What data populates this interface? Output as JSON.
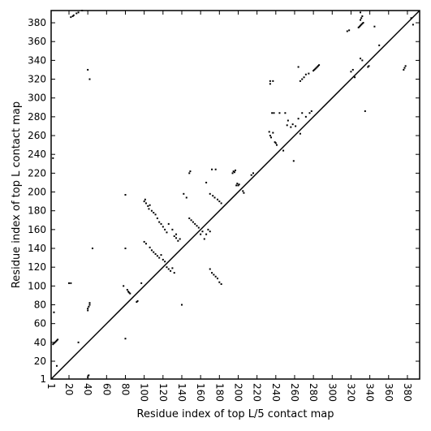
{
  "chart_data": {
    "type": "scatter",
    "title": "",
    "xlabel": "Residue index of top L/5 contact map",
    "ylabel": "Residue index of top L contact map",
    "xlim": [
      1,
      393
    ],
    "ylim": [
      1,
      393
    ],
    "grid": false,
    "legend": "none",
    "diagonal": true,
    "colors": {
      "points": "#000000",
      "diagonal": "#000000",
      "frame": "#000000"
    },
    "xticks": [
      1,
      20,
      40,
      60,
      80,
      100,
      120,
      140,
      160,
      180,
      200,
      220,
      240,
      260,
      280,
      300,
      320,
      340,
      360,
      380
    ],
    "yticks": [
      1,
      20,
      40,
      60,
      80,
      100,
      120,
      140,
      160,
      180,
      200,
      220,
      240,
      260,
      280,
      300,
      320,
      340,
      360,
      380
    ],
    "upper_triangle_contacts": [
      [
        22,
        386
      ],
      [
        24,
        387
      ],
      [
        25,
        388
      ],
      [
        28,
        390
      ],
      [
        30,
        391
      ],
      [
        34,
        393
      ],
      [
        40,
        330
      ],
      [
        42,
        320
      ],
      [
        172,
        224
      ],
      [
        176,
        224
      ],
      [
        148,
        220
      ],
      [
        149,
        222
      ],
      [
        194,
        220
      ],
      [
        195,
        222
      ],
      [
        196,
        221
      ],
      [
        197,
        223
      ],
      [
        198,
        207
      ],
      [
        199,
        209
      ],
      [
        200,
        207
      ],
      [
        201,
        208
      ],
      [
        205,
        201
      ],
      [
        206,
        199
      ],
      [
        233,
        264
      ],
      [
        234,
        260
      ],
      [
        235,
        258
      ],
      [
        236,
        284
      ],
      [
        237,
        263
      ],
      [
        238,
        284
      ],
      [
        239,
        253
      ],
      [
        240,
        252
      ],
      [
        241,
        250
      ],
      [
        244,
        284
      ],
      [
        248,
        244
      ],
      [
        250,
        284
      ],
      [
        252,
        271
      ],
      [
        253,
        276
      ],
      [
        256,
        269
      ],
      [
        258,
        272
      ],
      [
        259,
        233
      ],
      [
        261,
        270
      ],
      [
        264,
        278
      ],
      [
        266,
        262
      ],
      [
        268,
        284
      ],
      [
        264,
        333
      ],
      [
        266,
        318
      ],
      [
        268,
        320
      ],
      [
        270,
        322
      ],
      [
        272,
        325
      ],
      [
        275,
        326
      ],
      [
        280,
        329
      ],
      [
        281,
        330
      ],
      [
        282,
        331
      ],
      [
        283,
        332
      ],
      [
        284,
        333
      ],
      [
        285,
        334
      ],
      [
        286,
        335
      ],
      [
        272,
        280
      ],
      [
        276,
        284
      ],
      [
        278,
        286
      ],
      [
        234,
        315
      ],
      [
        234,
        318
      ],
      [
        237,
        318
      ],
      [
        316,
        371
      ],
      [
        318,
        372
      ],
      [
        320,
        328
      ],
      [
        322,
        330
      ],
      [
        324,
        322
      ],
      [
        328,
        375
      ],
      [
        329,
        376
      ],
      [
        330,
        377
      ],
      [
        331,
        378
      ],
      [
        332,
        379
      ],
      [
        333,
        380
      ],
      [
        330,
        383
      ],
      [
        331,
        385
      ],
      [
        332,
        387
      ],
      [
        330,
        391
      ],
      [
        330,
        342
      ],
      [
        332,
        340
      ],
      [
        335,
        286
      ],
      [
        338,
        333
      ],
      [
        339,
        334
      ],
      [
        345,
        376
      ],
      [
        350,
        356
      ],
      [
        376,
        330
      ],
      [
        377,
        332
      ],
      [
        378,
        334
      ],
      [
        384,
        385
      ],
      [
        386,
        378
      ]
    ],
    "lower_triangle_contacts": [
      [
        3,
        38
      ],
      [
        4,
        39
      ],
      [
        5,
        40
      ],
      [
        6,
        41
      ],
      [
        7,
        42
      ],
      [
        8,
        43
      ],
      [
        4,
        72
      ],
      [
        3,
        236
      ],
      [
        7,
        15
      ],
      [
        20,
        103
      ],
      [
        22,
        103
      ],
      [
        30,
        40
      ],
      [
        40,
        3
      ],
      [
        41,
        5
      ],
      [
        40,
        74
      ],
      [
        40,
        76
      ],
      [
        41,
        78
      ],
      [
        42,
        80
      ],
      [
        42,
        82
      ],
      [
        45,
        140
      ],
      [
        80,
        44
      ],
      [
        80,
        140
      ],
      [
        80,
        197
      ],
      [
        82,
        96
      ],
      [
        83,
        94
      ],
      [
        84,
        93
      ],
      [
        85,
        92
      ],
      [
        78,
        100
      ],
      [
        92,
        83
      ],
      [
        93,
        84
      ],
      [
        97,
        103
      ],
      [
        100,
        190
      ],
      [
        101,
        192
      ],
      [
        102,
        188
      ],
      [
        104,
        185
      ],
      [
        105,
        182
      ],
      [
        106,
        186
      ],
      [
        108,
        180
      ],
      [
        110,
        178
      ],
      [
        112,
        176
      ],
      [
        114,
        172
      ],
      [
        116,
        168
      ],
      [
        118,
        166
      ],
      [
        120,
        163
      ],
      [
        122,
        160
      ],
      [
        124,
        157
      ],
      [
        100,
        147
      ],
      [
        102,
        145
      ],
      [
        106,
        141
      ],
      [
        108,
        138
      ],
      [
        110,
        136
      ],
      [
        112,
        134
      ],
      [
        114,
        132
      ],
      [
        116,
        130
      ],
      [
        118,
        133
      ],
      [
        120,
        128
      ],
      [
        122,
        126
      ],
      [
        124,
        120
      ],
      [
        126,
        118
      ],
      [
        128,
        116
      ],
      [
        130,
        119
      ],
      [
        132,
        114
      ],
      [
        132,
        153
      ],
      [
        134,
        151
      ],
      [
        136,
        148
      ],
      [
        138,
        150
      ],
      [
        126,
        166
      ],
      [
        130,
        160
      ],
      [
        134,
        155
      ],
      [
        140,
        80
      ],
      [
        142,
        198
      ],
      [
        145,
        194
      ],
      [
        148,
        172
      ],
      [
        150,
        170
      ],
      [
        152,
        168
      ],
      [
        154,
        166
      ],
      [
        156,
        164
      ],
      [
        158,
        162
      ],
      [
        160,
        155
      ],
      [
        162,
        158
      ],
      [
        164,
        150
      ],
      [
        166,
        155
      ],
      [
        168,
        160
      ],
      [
        170,
        158
      ],
      [
        170,
        118
      ],
      [
        172,
        114
      ],
      [
        174,
        112
      ],
      [
        176,
        110
      ],
      [
        178,
        108
      ],
      [
        180,
        104
      ],
      [
        182,
        102
      ],
      [
        166,
        210
      ],
      [
        170,
        198
      ],
      [
        173,
        196
      ],
      [
        175,
        194
      ],
      [
        178,
        192
      ],
      [
        180,
        190
      ],
      [
        182,
        188
      ],
      [
        214,
        218
      ],
      [
        216,
        220
      ]
    ]
  }
}
